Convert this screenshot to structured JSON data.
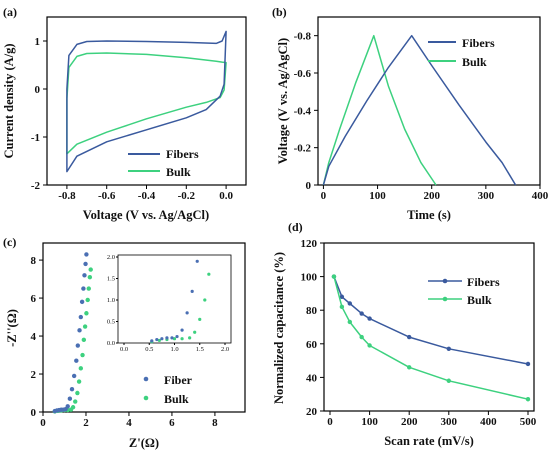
{
  "colors": {
    "fibers": "#3a5a9e",
    "bulk": "#3dd17f",
    "fiber_marker": "#4a6fb3"
  },
  "chart_data": [
    {
      "panel": "(a)",
      "type": "line",
      "xlabel": "Voltage (V vs. Ag/AgCl)",
      "ylabel": "Current density (A/g)",
      "xlim": [
        -0.9,
        0.1
      ],
      "ylim": [
        -2,
        1.5
      ],
      "xticks": [
        "-0.8",
        "-0.6",
        "-0.4",
        "-0.2",
        "0.0"
      ],
      "yticks": [
        "-2",
        "-1",
        "0",
        "1"
      ],
      "legend_position": "bottom-right",
      "series": [
        {
          "name": "Fibers",
          "x": [
            -0.8,
            -0.79,
            -0.75,
            -0.7,
            -0.6,
            -0.4,
            -0.2,
            -0.05,
            -0.02,
            0.0,
            -0.01,
            -0.03,
            -0.1,
            -0.2,
            -0.4,
            -0.6,
            -0.75,
            -0.8,
            -0.8
          ],
          "y": [
            0.0,
            0.7,
            0.93,
            0.99,
            1.0,
            0.99,
            0.97,
            0.95,
            1.0,
            1.2,
            0.1,
            -0.15,
            -0.43,
            -0.6,
            -0.85,
            -1.1,
            -1.4,
            -1.72,
            0.0
          ]
        },
        {
          "name": "Bulk",
          "x": [
            -0.8,
            -0.79,
            -0.75,
            -0.7,
            -0.6,
            -0.4,
            -0.2,
            -0.05,
            -0.02,
            0.0,
            -0.01,
            -0.03,
            -0.1,
            -0.2,
            -0.4,
            -0.6,
            -0.75,
            -0.8,
            -0.8
          ],
          "y": [
            -0.2,
            0.45,
            0.68,
            0.74,
            0.75,
            0.72,
            0.65,
            0.58,
            0.56,
            0.55,
            -0.02,
            -0.18,
            -0.28,
            -0.38,
            -0.62,
            -0.9,
            -1.15,
            -1.35,
            -0.2
          ]
        }
      ]
    },
    {
      "panel": "(b)",
      "type": "line",
      "xlabel": "Time (s)",
      "ylabel": "Voltage (V vs. Ag/AgCl)",
      "xlim": [
        -10,
        400
      ],
      "ylim": [
        0,
        -0.9
      ],
      "xticks": [
        "0",
        "100",
        "200",
        "300",
        "400"
      ],
      "yticks": [
        "0",
        "-0.2",
        "-0.4",
        "-0.6",
        "-0.8"
      ],
      "legend_position": "top-right",
      "series": [
        {
          "name": "Fibers",
          "x": [
            0,
            10,
            40,
            80,
            120,
            163,
            200,
            250,
            300,
            330,
            355
          ],
          "y": [
            0,
            -0.1,
            -0.26,
            -0.45,
            -0.63,
            -0.8,
            -0.64,
            -0.43,
            -0.23,
            -0.12,
            0
          ]
        },
        {
          "name": "Bulk",
          "x": [
            0,
            10,
            30,
            60,
            93,
            120,
            150,
            180,
            208
          ],
          "y": [
            0,
            -0.12,
            -0.3,
            -0.55,
            -0.8,
            -0.53,
            -0.3,
            -0.12,
            0
          ]
        }
      ]
    },
    {
      "panel": "(c)",
      "type": "scatter",
      "xlabel": "Z'(Ω)",
      "ylabel": "-Z''(Ω)",
      "xlim": [
        0,
        9.4
      ],
      "ylim": [
        0,
        8.9
      ],
      "xticks": [
        "0",
        "2",
        "4",
        "6",
        "8"
      ],
      "yticks": [
        "0",
        "2",
        "4",
        "6",
        "8"
      ],
      "legend_position": "bottom-right",
      "series": [
        {
          "name": "Fiber",
          "x": [
            0.55,
            0.65,
            0.75,
            0.85,
            0.95,
            1.05,
            1.15,
            1.25,
            1.35,
            1.45,
            1.55,
            1.62,
            1.7,
            1.76,
            1.82,
            1.88,
            1.93,
            1.98,
            2.02
          ],
          "y": [
            0.05,
            0.08,
            0.1,
            0.12,
            0.12,
            0.15,
            0.3,
            0.7,
            1.2,
            1.9,
            2.7,
            3.5,
            4.3,
            5.0,
            5.8,
            6.5,
            7.2,
            7.8,
            8.3
          ]
        },
        {
          "name": "Bulk",
          "x": [
            0.55,
            0.7,
            0.85,
            1.0,
            1.15,
            1.3,
            1.4,
            1.5,
            1.6,
            1.68,
            1.76,
            1.84,
            1.9,
            1.96,
            2.02,
            2.08,
            2.13,
            2.18,
            2.22
          ],
          "y": [
            0.03,
            0.06,
            0.08,
            0.1,
            0.1,
            0.12,
            0.25,
            0.55,
            1.0,
            1.6,
            2.3,
            3.0,
            3.8,
            4.5,
            5.2,
            5.9,
            6.5,
            7.1,
            7.5
          ]
        }
      ],
      "inset": {
        "xlim": [
          0,
          2.0
        ],
        "ylim": [
          0,
          2.0
        ],
        "xticks": [
          "0.0",
          "0.5",
          "1.0",
          "1.5",
          "2.0"
        ],
        "yticks": [
          "0.0",
          "0.5",
          "1.0",
          "1.5",
          "2.0"
        ]
      }
    },
    {
      "panel": "(d)",
      "type": "line",
      "xlabel": "Scan rate (mV/s)",
      "ylabel": "Normalized capacitance (%)",
      "xlim": [
        0,
        500
      ],
      "ylim": [
        20,
        120
      ],
      "xticks": [
        "0",
        "100",
        "200",
        "300",
        "400",
        "500"
      ],
      "yticks": [
        "20",
        "40",
        "60",
        "80",
        "100",
        "120"
      ],
      "legend_position": "top-right",
      "series": [
        {
          "name": "Fibers",
          "x": [
            10,
            30,
            50,
            80,
            100,
            200,
            300,
            500
          ],
          "y": [
            100,
            88,
            84,
            78,
            75,
            64,
            57,
            48
          ]
        },
        {
          "name": "Bulk",
          "x": [
            10,
            30,
            50,
            80,
            100,
            200,
            300,
            500
          ],
          "y": [
            100,
            82,
            73,
            64,
            59,
            46,
            38,
            27
          ]
        }
      ]
    }
  ]
}
